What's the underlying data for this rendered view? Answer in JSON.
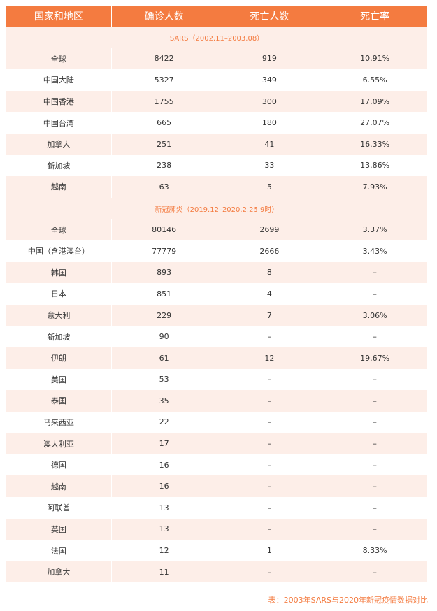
{
  "table": {
    "columns": [
      "国家和地区",
      "确诊人数",
      "死亡人数",
      "死亡率"
    ],
    "sections": [
      {
        "title": "SARS（2002.11–2003.08）",
        "rows": [
          [
            "全球",
            "8422",
            "919",
            "10.91%"
          ],
          [
            "中国大陆",
            "5327",
            "349",
            "6.55%"
          ],
          [
            "中国香港",
            "1755",
            "300",
            "17.09%"
          ],
          [
            "中国台湾",
            "665",
            "180",
            "27.07%"
          ],
          [
            "加拿大",
            "251",
            "41",
            "16.33%"
          ],
          [
            "新加坡",
            "238",
            "33",
            "13.86%"
          ],
          [
            "越南",
            "63",
            "5",
            "7.93%"
          ]
        ]
      },
      {
        "title": "新冠肺炎（2019.12–2020.2.25 9时）",
        "rows": [
          [
            "全球",
            "80146",
            "2699",
            "3.37%"
          ],
          [
            "中国（含港澳台）",
            "77779",
            "2666",
            "3.43%"
          ],
          [
            "韩国",
            "893",
            "8",
            "–"
          ],
          [
            "日本",
            "851",
            "4",
            "–"
          ],
          [
            "意大利",
            "229",
            "7",
            "3.06%"
          ],
          [
            "新加坡",
            "90",
            "–",
            "–"
          ],
          [
            "伊朗",
            "61",
            "12",
            "19.67%"
          ],
          [
            "美国",
            "53",
            "–",
            "–"
          ],
          [
            "泰国",
            "35",
            "–",
            "–"
          ],
          [
            "马来西亚",
            "22",
            "–",
            "–"
          ],
          [
            "澳大利亚",
            "17",
            "–",
            "–"
          ],
          [
            "德国",
            "16",
            "–",
            "–"
          ],
          [
            "越南",
            "16",
            "–",
            "–"
          ],
          [
            "阿联酋",
            "13",
            "–",
            "–"
          ],
          [
            "英国",
            "13",
            "–",
            "–"
          ],
          [
            "法国",
            "12",
            "1",
            "8.33%"
          ],
          [
            "加拿大",
            "11",
            "–",
            "–"
          ]
        ]
      }
    ]
  },
  "caption": "表：2003年SARS与2020年新冠疫情数据对比"
}
